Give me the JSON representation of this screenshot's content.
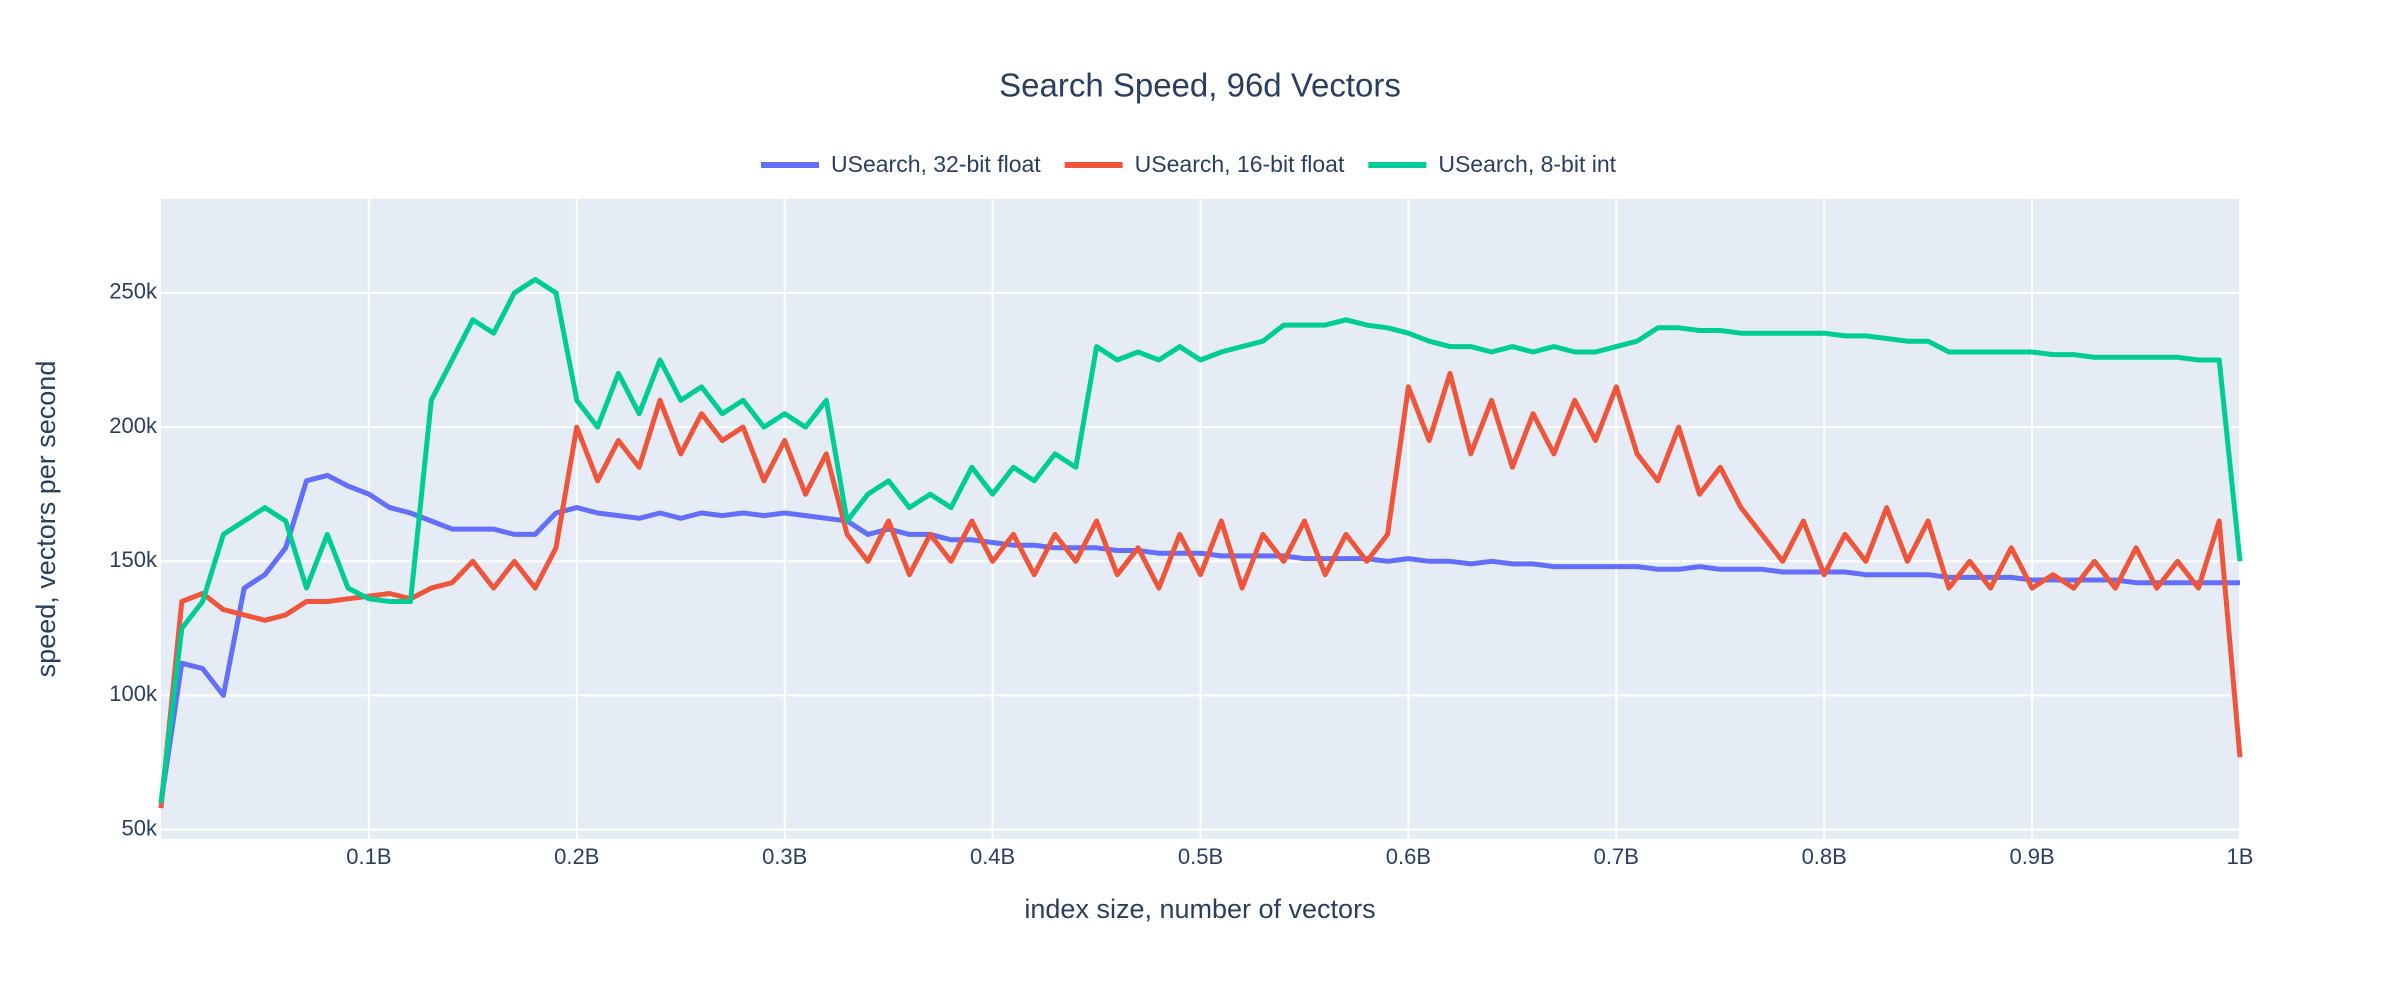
{
  "chart_data": {
    "type": "line",
    "title": "Search Speed, 96d Vectors",
    "x_label": "index size, number of vectors",
    "y_label": "speed, vectors per second",
    "x": [
      0,
      10000000,
      20000000,
      30000000,
      40000000,
      50000000,
      60000000,
      70000000,
      80000000,
      90000000,
      100000000,
      110000000,
      120000000,
      130000000,
      140000000,
      150000000,
      160000000,
      170000000,
      180000000,
      190000000,
      200000000,
      210000000,
      220000000,
      230000000,
      240000000,
      250000000,
      260000000,
      270000000,
      280000000,
      290000000,
      300000000,
      310000000,
      320000000,
      330000000,
      340000000,
      350000000,
      360000000,
      370000000,
      380000000,
      390000000,
      400000000,
      410000000,
      420000000,
      430000000,
      440000000,
      450000000,
      460000000,
      470000000,
      480000000,
      490000000,
      500000000,
      510000000,
      520000000,
      530000000,
      540000000,
      550000000,
      560000000,
      570000000,
      580000000,
      590000000,
      600000000,
      610000000,
      620000000,
      630000000,
      640000000,
      650000000,
      660000000,
      670000000,
      680000000,
      690000000,
      700000000,
      710000000,
      720000000,
      730000000,
      740000000,
      750000000,
      760000000,
      770000000,
      780000000,
      790000000,
      800000000,
      810000000,
      820000000,
      830000000,
      840000000,
      850000000,
      860000000,
      870000000,
      880000000,
      890000000,
      900000000,
      910000000,
      920000000,
      930000000,
      940000000,
      950000000,
      960000000,
      970000000,
      980000000,
      990000000,
      1000000000
    ],
    "series": [
      {
        "name": "USearch, 32-bit float",
        "color": "#636efa",
        "values": [
          60000,
          112000,
          110000,
          100000,
          140000,
          145000,
          155000,
          180000,
          182000,
          178000,
          175000,
          170000,
          168000,
          165000,
          162000,
          162000,
          162000,
          160000,
          160000,
          168000,
          170000,
          168000,
          167000,
          166000,
          168000,
          166000,
          168000,
          167000,
          168000,
          167000,
          168000,
          167000,
          166000,
          165000,
          160000,
          162000,
          160000,
          160000,
          158000,
          158000,
          157000,
          156000,
          156000,
          155000,
          155000,
          155000,
          154000,
          154000,
          153000,
          153000,
          153000,
          152000,
          152000,
          152000,
          152000,
          151000,
          151000,
          151000,
          151000,
          150000,
          151000,
          150000,
          150000,
          149000,
          150000,
          149000,
          149000,
          148000,
          148000,
          148000,
          148000,
          148000,
          147000,
          147000,
          148000,
          147000,
          147000,
          147000,
          146000,
          146000,
          146000,
          146000,
          145000,
          145000,
          145000,
          145000,
          144000,
          144000,
          144000,
          144000,
          143000,
          143000,
          143000,
          143000,
          143000,
          142000,
          142000,
          142000,
          142000,
          142000,
          142000
        ]
      },
      {
        "name": "USearch, 16-bit float",
        "color": "#EF553B",
        "values": [
          58000,
          135000,
          138000,
          132000,
          130000,
          128000,
          130000,
          135000,
          135000,
          136000,
          137000,
          138000,
          136000,
          140000,
          142000,
          150000,
          140000,
          150000,
          140000,
          155000,
          200000,
          180000,
          195000,
          185000,
          210000,
          190000,
          205000,
          195000,
          200000,
          180000,
          195000,
          175000,
          190000,
          160000,
          150000,
          165000,
          145000,
          160000,
          150000,
          165000,
          150000,
          160000,
          145000,
          160000,
          150000,
          165000,
          145000,
          155000,
          140000,
          160000,
          145000,
          165000,
          140000,
          160000,
          150000,
          165000,
          145000,
          160000,
          150000,
          160000,
          215000,
          195000,
          220000,
          190000,
          210000,
          185000,
          205000,
          190000,
          210000,
          195000,
          215000,
          190000,
          180000,
          200000,
          175000,
          185000,
          170000,
          160000,
          150000,
          165000,
          145000,
          160000,
          150000,
          170000,
          150000,
          165000,
          140000,
          150000,
          140000,
          155000,
          140000,
          145000,
          140000,
          150000,
          140000,
          155000,
          140000,
          150000,
          140000,
          165000,
          77000
        ]
      },
      {
        "name": "USearch, 8-bit int",
        "color": "#00cc96",
        "values": [
          60000,
          125000,
          135000,
          160000,
          165000,
          170000,
          165000,
          140000,
          160000,
          140000,
          136000,
          135000,
          135000,
          210000,
          225000,
          240000,
          235000,
          250000,
          255000,
          250000,
          210000,
          200000,
          220000,
          205000,
          225000,
          210000,
          215000,
          205000,
          210000,
          200000,
          205000,
          200000,
          210000,
          165000,
          175000,
          180000,
          170000,
          175000,
          170000,
          185000,
          175000,
          185000,
          180000,
          190000,
          185000,
          230000,
          225000,
          228000,
          225000,
          230000,
          225000,
          228000,
          230000,
          232000,
          238000,
          238000,
          238000,
          240000,
          238000,
          237000,
          235000,
          232000,
          230000,
          230000,
          228000,
          230000,
          228000,
          230000,
          228000,
          228000,
          230000,
          232000,
          237000,
          237000,
          236000,
          236000,
          235000,
          235000,
          235000,
          235000,
          235000,
          234000,
          234000,
          233000,
          232000,
          232000,
          228000,
          228000,
          228000,
          228000,
          228000,
          227000,
          227000,
          226000,
          226000,
          226000,
          226000,
          226000,
          225000,
          225000,
          150000
        ]
      }
    ],
    "xlim": [
      0,
      1000000000
    ],
    "xticks": [
      {
        "value": 100000000,
        "label": "0.1B"
      },
      {
        "value": 200000000,
        "label": "0.2B"
      },
      {
        "value": 300000000,
        "label": "0.3B"
      },
      {
        "value": 400000000,
        "label": "0.4B"
      },
      {
        "value": 500000000,
        "label": "0.5B"
      },
      {
        "value": 600000000,
        "label": "0.6B"
      },
      {
        "value": 700000000,
        "label": "0.7B"
      },
      {
        "value": 800000000,
        "label": "0.8B"
      },
      {
        "value": 900000000,
        "label": "0.9B"
      },
      {
        "value": 1000000000,
        "label": "1B"
      }
    ],
    "ylim": [
      46500,
      285000
    ],
    "yticks": [
      {
        "value": 50000,
        "label": "50k"
      },
      {
        "value": 100000,
        "label": "100k"
      },
      {
        "value": 150000,
        "label": "150k"
      },
      {
        "value": 200000,
        "label": "200k"
      },
      {
        "value": 250000,
        "label": "250k"
      }
    ],
    "grid": true,
    "legend": "top"
  }
}
